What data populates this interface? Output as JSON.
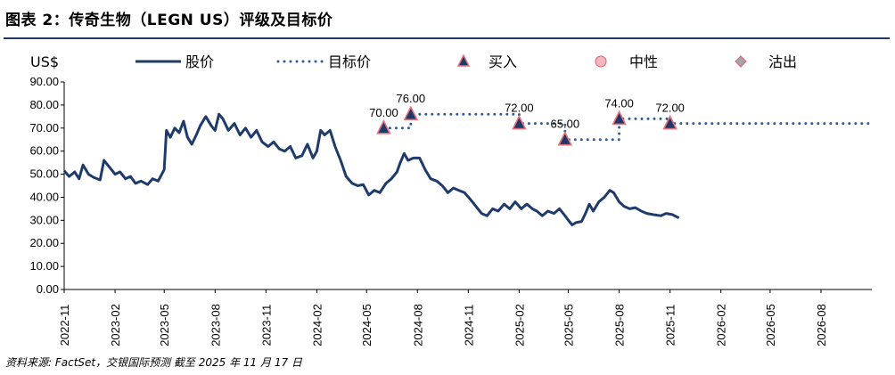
{
  "header": {
    "title": "图表 2：传奇生物（LEGN US）评级及目标价"
  },
  "source": "资料来源: FactSet，交银国际预测  截至 2025 年 11 月 17 日",
  "colors": {
    "price_line": "#1f3b6b",
    "target_line": "#2e5c9a",
    "buy_marker_fill": "#1f3864",
    "buy_marker_edge": "#e8717f",
    "neutral_marker": "#f2b8c0",
    "exit_marker": "#a0a6b0",
    "rule": "#1f3864"
  },
  "chart_data": {
    "type": "line",
    "ylabel": "US$",
    "ylim": [
      0,
      90
    ],
    "y_ticks": [
      "0.00",
      "10.00",
      "20.00",
      "30.00",
      "40.00",
      "50.00",
      "60.00",
      "70.00",
      "80.00",
      "90.00"
    ],
    "x_tick_labels": [
      "2022-11",
      "2023-02",
      "2023-05",
      "2023-08",
      "2023-11",
      "2024-02",
      "2024-05",
      "2024-08",
      "2024-11",
      "2025-02",
      "2025-05",
      "2025-08",
      "2025-11",
      "2026-02",
      "2026-05",
      "2026-08"
    ],
    "legend": [
      {
        "name": "股价",
        "style": "solid-line"
      },
      {
        "name": "目标价",
        "style": "dotted-line"
      },
      {
        "name": "买入",
        "style": "triangle-marker"
      },
      {
        "name": "中性",
        "style": "circle-marker"
      },
      {
        "name": "沽出",
        "style": "diamond-marker"
      }
    ],
    "series": [
      {
        "name": "股价",
        "points": [
          [
            "2022-11-01",
            51.5
          ],
          [
            "2022-11-10",
            49
          ],
          [
            "2022-11-20",
            51
          ],
          [
            "2022-11-28",
            48
          ],
          [
            "2022-12-05",
            54
          ],
          [
            "2022-12-15",
            50
          ],
          [
            "2022-12-25",
            48.5
          ],
          [
            "2023-01-05",
            47.5
          ],
          [
            "2023-01-12",
            56
          ],
          [
            "2023-01-22",
            53
          ],
          [
            "2023-02-01",
            50
          ],
          [
            "2023-02-10",
            51
          ],
          [
            "2023-02-20",
            48
          ],
          [
            "2023-03-01",
            49
          ],
          [
            "2023-03-10",
            46
          ],
          [
            "2023-03-20",
            47
          ],
          [
            "2023-04-01",
            45.5
          ],
          [
            "2023-04-10",
            48
          ],
          [
            "2023-04-20",
            47
          ],
          [
            "2023-05-01",
            52
          ],
          [
            "2023-05-05",
            69
          ],
          [
            "2023-05-12",
            66
          ],
          [
            "2023-05-20",
            70
          ],
          [
            "2023-05-28",
            68
          ],
          [
            "2023-06-05",
            73
          ],
          [
            "2023-06-12",
            66
          ],
          [
            "2023-06-20",
            63
          ],
          [
            "2023-06-28",
            67
          ],
          [
            "2023-07-05",
            71
          ],
          [
            "2023-07-15",
            75
          ],
          [
            "2023-07-25",
            71
          ],
          [
            "2023-08-01",
            69
          ],
          [
            "2023-08-08",
            76
          ],
          [
            "2023-08-15",
            74
          ],
          [
            "2023-08-25",
            69
          ],
          [
            "2023-09-05",
            72
          ],
          [
            "2023-09-15",
            67
          ],
          [
            "2023-09-25",
            70
          ],
          [
            "2023-10-05",
            66
          ],
          [
            "2023-10-15",
            69
          ],
          [
            "2023-10-25",
            64
          ],
          [
            "2023-11-05",
            62
          ],
          [
            "2023-11-15",
            64
          ],
          [
            "2023-11-25",
            61
          ],
          [
            "2023-12-05",
            60
          ],
          [
            "2023-12-15",
            62
          ],
          [
            "2023-12-25",
            57
          ],
          [
            "2024-01-05",
            58
          ],
          [
            "2024-01-15",
            63
          ],
          [
            "2024-01-25",
            57
          ],
          [
            "2024-02-01",
            60
          ],
          [
            "2024-02-08",
            69
          ],
          [
            "2024-02-15",
            67
          ],
          [
            "2024-02-25",
            69
          ],
          [
            "2024-03-05",
            62
          ],
          [
            "2024-03-15",
            56
          ],
          [
            "2024-03-25",
            49
          ],
          [
            "2024-04-05",
            46
          ],
          [
            "2024-04-15",
            45
          ],
          [
            "2024-04-25",
            45.5
          ],
          [
            "2024-05-05",
            41
          ],
          [
            "2024-05-15",
            43
          ],
          [
            "2024-05-25",
            42
          ],
          [
            "2024-06-05",
            46
          ],
          [
            "2024-06-15",
            48
          ],
          [
            "2024-06-25",
            51
          ],
          [
            "2024-07-01",
            55
          ],
          [
            "2024-07-08",
            59
          ],
          [
            "2024-07-15",
            56
          ],
          [
            "2024-07-25",
            57
          ],
          [
            "2024-08-05",
            57
          ],
          [
            "2024-08-15",
            52
          ],
          [
            "2024-08-25",
            48
          ],
          [
            "2024-09-05",
            47
          ],
          [
            "2024-09-15",
            45
          ],
          [
            "2024-09-25",
            42
          ],
          [
            "2024-10-05",
            44
          ],
          [
            "2024-10-15",
            43
          ],
          [
            "2024-10-25",
            42
          ],
          [
            "2024-11-05",
            39
          ],
          [
            "2024-11-15",
            36
          ],
          [
            "2024-11-25",
            33
          ],
          [
            "2024-12-05",
            32
          ],
          [
            "2024-12-15",
            35
          ],
          [
            "2024-12-25",
            34
          ],
          [
            "2025-01-05",
            37
          ],
          [
            "2025-01-15",
            35
          ],
          [
            "2025-01-25",
            38
          ],
          [
            "2025-02-05",
            35
          ],
          [
            "2025-02-15",
            37
          ],
          [
            "2025-02-25",
            35
          ],
          [
            "2025-03-05",
            34
          ],
          [
            "2025-03-15",
            32
          ],
          [
            "2025-03-25",
            34
          ],
          [
            "2025-04-05",
            33
          ],
          [
            "2025-04-15",
            35
          ],
          [
            "2025-04-25",
            32
          ],
          [
            "2025-05-01",
            30
          ],
          [
            "2025-05-08",
            28
          ],
          [
            "2025-05-15",
            29
          ],
          [
            "2025-05-25",
            29.5
          ],
          [
            "2025-06-01",
            33
          ],
          [
            "2025-06-08",
            37
          ],
          [
            "2025-06-15",
            34
          ],
          [
            "2025-06-25",
            38
          ],
          [
            "2025-07-05",
            40
          ],
          [
            "2025-07-15",
            43
          ],
          [
            "2025-07-22",
            42
          ],
          [
            "2025-08-01",
            38
          ],
          [
            "2025-08-10",
            36
          ],
          [
            "2025-08-20",
            35
          ],
          [
            "2025-08-30",
            35.5
          ],
          [
            "2025-09-10",
            34
          ],
          [
            "2025-09-20",
            33
          ],
          [
            "2025-10-01",
            32.5
          ],
          [
            "2025-10-15",
            32
          ],
          [
            "2025-10-25",
            33
          ],
          [
            "2025-11-05",
            32.5
          ],
          [
            "2025-11-17",
            31
          ]
        ]
      },
      {
        "name": "目标价",
        "segments": [
          [
            [
              "2024-06-01",
              70
            ],
            [
              "2024-07-20",
              70
            ],
            [
              "2024-07-20",
              76
            ],
            [
              "2025-02-01",
              76
            ],
            [
              "2025-02-01",
              72
            ],
            [
              "2025-04-25",
              72
            ],
            [
              "2025-04-25",
              65
            ],
            [
              "2025-08-01",
              65
            ],
            [
              "2025-08-01",
              74
            ],
            [
              "2025-11-01",
              74
            ],
            [
              "2025-11-01",
              72
            ],
            [
              "2026-11-01",
              72
            ]
          ]
        ]
      }
    ],
    "annotations": [
      {
        "date": "2024-06-01",
        "value": 70,
        "label": "70.00",
        "rating": "买入"
      },
      {
        "date": "2024-07-20",
        "value": 76,
        "label": "76.00",
        "rating": "买入"
      },
      {
        "date": "2025-02-01",
        "value": 72,
        "label": "72.00",
        "rating": "买入"
      },
      {
        "date": "2025-04-25",
        "value": 65,
        "label": "65.00",
        "rating": "买入"
      },
      {
        "date": "2025-08-01",
        "value": 74,
        "label": "74.00",
        "rating": "买入"
      },
      {
        "date": "2025-11-01",
        "value": 72,
        "label": "72.00",
        "rating": "买入"
      }
    ]
  }
}
